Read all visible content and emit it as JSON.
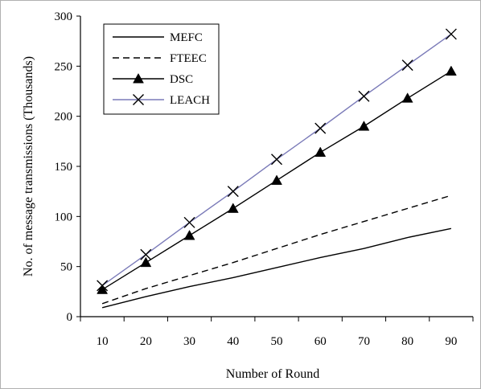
{
  "chart_data": {
    "type": "line",
    "title": "",
    "xlabel": "Number of Round",
    "ylabel": "No. of message transmissions (Thousands)",
    "x": [
      10,
      20,
      30,
      40,
      50,
      60,
      70,
      80,
      90
    ],
    "xticks": [
      "10",
      "20",
      "30",
      "40",
      "50",
      "60",
      "70",
      "80",
      "90"
    ],
    "xlim": [
      5,
      95
    ],
    "yticks": [
      "0",
      "50",
      "100",
      "150",
      "200",
      "250",
      "300"
    ],
    "ylim": [
      0,
      300
    ],
    "grid": false,
    "legend_position": "top-left",
    "series": [
      {
        "name": "MEFC",
        "values": [
          9,
          20,
          30,
          39,
          49,
          59,
          68,
          79,
          88
        ],
        "line": "solid",
        "marker": "none",
        "color": "#000000"
      },
      {
        "name": "FTEEC",
        "values": [
          13,
          28,
          41,
          54,
          68,
          82,
          95,
          108,
          121
        ],
        "line": "dashed",
        "marker": "none",
        "color": "#000000"
      },
      {
        "name": "DSC",
        "values": [
          27,
          54,
          81,
          108,
          136,
          164,
          190,
          218,
          245
        ],
        "line": "solid",
        "marker": "triangle",
        "color": "#000000"
      },
      {
        "name": "LEACH",
        "values": [
          31,
          62,
          94,
          125,
          157,
          188,
          220,
          251,
          282
        ],
        "line": "solid",
        "marker": "x",
        "color": "#7a7ab8"
      }
    ]
  }
}
